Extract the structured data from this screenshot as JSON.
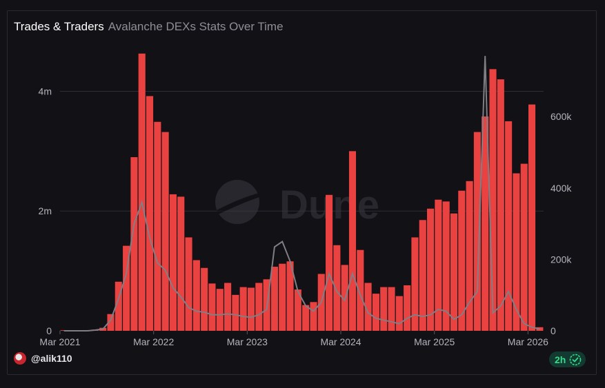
{
  "header": {
    "title": "Trades & Traders",
    "subtitle": "Avalanche DEXs Stats Over Time"
  },
  "watermark": "Dune",
  "footer": {
    "user": "@alik110",
    "age": "2h"
  },
  "colors": {
    "bar": "#ea4141",
    "line": "#7f7f85",
    "grid": "#2e2e34",
    "tick": "#b4b4bc",
    "background": "#111116"
  },
  "icons": {
    "avatar": "avatar-icon",
    "verified": "check-circle-icon"
  },
  "chart_data": {
    "type": "bar",
    "x_start": "Mar 2021",
    "x_interval": "month",
    "xticks": [
      "Mar 2021",
      "Mar 2022",
      "Mar 2023",
      "Mar 2024",
      "Mar 2025",
      "Mar 2026"
    ],
    "y_left": {
      "ticks": [
        "0",
        "2m",
        "4m"
      ],
      "tick_values": [
        0,
        2000000,
        4000000
      ],
      "lim": [
        0,
        4650000
      ]
    },
    "y_right": {
      "ticks": [
        "0",
        "200k",
        "400k",
        "600k"
      ],
      "tick_values": [
        0,
        200000,
        400000,
        600000
      ],
      "lim": [
        0,
        780000
      ]
    },
    "series": [
      {
        "axis": "left",
        "type": "bar",
        "values": [
          10000,
          10000,
          10000,
          10000,
          20000,
          50000,
          280000,
          820000,
          1420000,
          2900000,
          4630000,
          3920000,
          3490000,
          3320000,
          2280000,
          2240000,
          1560000,
          1180000,
          1050000,
          790000,
          700000,
          800000,
          600000,
          730000,
          720000,
          800000,
          860000,
          1070000,
          1120000,
          1160000,
          690000,
          430000,
          480000,
          950000,
          2270000,
          1430000,
          1100000,
          3000000,
          1350000,
          800000,
          620000,
          730000,
          730000,
          580000,
          760000,
          1560000,
          1850000,
          2040000,
          2190000,
          2160000,
          1960000,
          2340000,
          2500000,
          3320000,
          3580000,
          4370000,
          4200000,
          3500000,
          2630000,
          2790000,
          3780000,
          60000
        ]
      },
      {
        "axis": "right",
        "type": "line",
        "values": [
          0,
          0,
          0,
          0,
          2000,
          5000,
          30000,
          90000,
          160000,
          300000,
          360000,
          260000,
          190000,
          170000,
          120000,
          95000,
          65000,
          55000,
          52000,
          45000,
          45000,
          47000,
          45000,
          40000,
          38000,
          45000,
          60000,
          235000,
          250000,
          195000,
          110000,
          70000,
          55000,
          80000,
          160000,
          110000,
          85000,
          160000,
          100000,
          50000,
          35000,
          30000,
          25000,
          20000,
          35000,
          45000,
          40000,
          45000,
          60000,
          55000,
          32000,
          45000,
          80000,
          110000,
          770000,
          50000,
          70000,
          110000,
          60000,
          20000,
          10000,
          5000
        ]
      }
    ]
  }
}
